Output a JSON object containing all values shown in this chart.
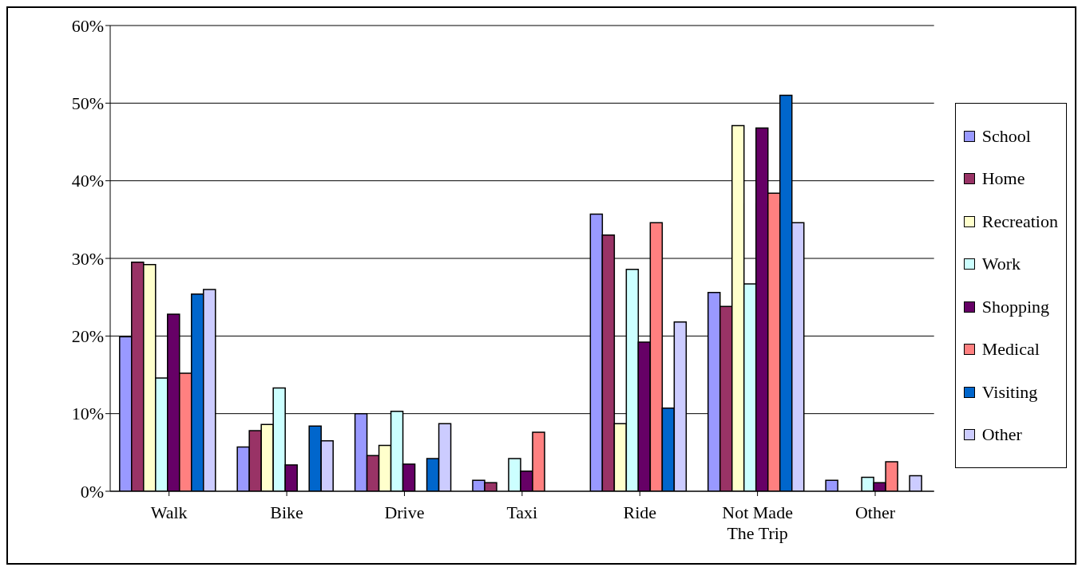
{
  "chart_data": {
    "type": "bar",
    "categories": [
      "Walk",
      "Bike",
      "Drive",
      "Taxi",
      "Ride",
      "Not Made The Trip",
      "Other"
    ],
    "series": [
      {
        "name": "School",
        "color": "#9999ff",
        "values": [
          19.9,
          5.7,
          10.0,
          1.4,
          35.7,
          25.6,
          1.4
        ]
      },
      {
        "name": "Home",
        "color": "#993366",
        "values": [
          29.5,
          7.8,
          4.6,
          1.1,
          33.0,
          23.8,
          0
        ]
      },
      {
        "name": "Recreation",
        "color": "#ffffcc",
        "values": [
          29.2,
          8.6,
          5.9,
          0,
          8.7,
          47.1,
          0
        ]
      },
      {
        "name": "Work",
        "color": "#ccffff",
        "values": [
          14.6,
          13.3,
          10.3,
          4.2,
          28.6,
          26.7,
          1.8
        ]
      },
      {
        "name": "Shopping",
        "color": "#660066",
        "values": [
          22.8,
          3.4,
          3.5,
          2.6,
          19.2,
          46.8,
          1.1
        ]
      },
      {
        "name": "Medical",
        "color": "#ff8080",
        "values": [
          15.2,
          0,
          0,
          7.6,
          34.6,
          38.4,
          3.8
        ]
      },
      {
        "name": "Visiting",
        "color": "#0066cc",
        "values": [
          25.4,
          8.4,
          4.2,
          0,
          10.7,
          51.0,
          0
        ]
      },
      {
        "name": "Other",
        "color": "#ccccff",
        "values": [
          26.0,
          6.5,
          8.7,
          0,
          21.8,
          34.6,
          2.0
        ]
      }
    ],
    "ylim": [
      0,
      60
    ],
    "yticks": [
      {
        "value": 0,
        "label": "0%"
      },
      {
        "value": 10,
        "label": "10%"
      },
      {
        "value": 20,
        "label": "20%"
      },
      {
        "value": 30,
        "label": "30%"
      },
      {
        "value": 40,
        "label": "40%"
      },
      {
        "value": 50,
        "label": "50%"
      },
      {
        "value": 60,
        "label": "60%"
      }
    ],
    "grid": "y",
    "legend": "right"
  }
}
